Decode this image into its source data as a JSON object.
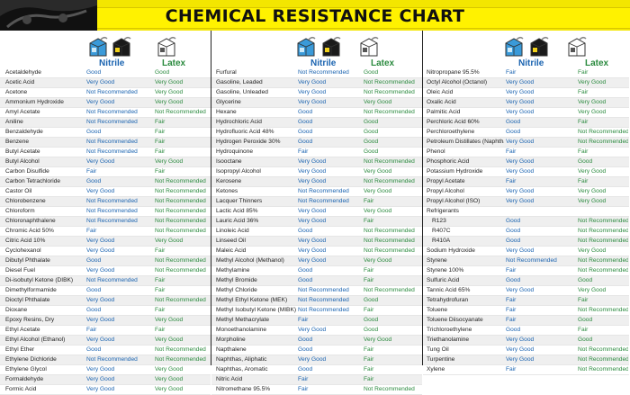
{
  "title": "CHEMICAL RESISTANCE CHART",
  "headers": {
    "nitrile": "Nitrile",
    "latex": "Latex"
  },
  "icons": [
    "glove-box-icon-blue",
    "glove-box-icon-black",
    "glove-box-icon-white"
  ],
  "columns": [
    {
      "rows": [
        [
          "Acetaldehyde",
          "Good",
          "Good"
        ],
        [
          "Acetic Acid",
          "Very Good",
          "Very Good"
        ],
        [
          "Acetone",
          "Not Recommended",
          "Very Good"
        ],
        [
          "Ammonium Hydroxide",
          "Very Good",
          "Very Good"
        ],
        [
          "Amyl Acetate",
          "Not Recommended",
          "Not Recommended"
        ],
        [
          "Aniline",
          "Not Recommended",
          "Fair"
        ],
        [
          "Benzaldehyde",
          "Good",
          "Fair"
        ],
        [
          "Benzene",
          "Not Recommended",
          "Fair"
        ],
        [
          "Butyl Acetate",
          "Not Recommended",
          "Fair"
        ],
        [
          "Butyl Alcohol",
          "Very Good",
          "Very Good"
        ],
        [
          "Carbon Disulfide",
          "Fair",
          "Fair"
        ],
        [
          "Carbon Tetrachloride",
          "Good",
          "Not Recommended"
        ],
        [
          "Castor Oil",
          "Very Good",
          "Not Recommended"
        ],
        [
          "Chlorobenzene",
          "Not Recommended",
          "Not Recommended"
        ],
        [
          "Chloroform",
          "Not Recommended",
          "Not Recommended"
        ],
        [
          "Chloronaphthalene",
          "Not Recommended",
          "Not Recommended"
        ],
        [
          "Chromic Acid 50%",
          "Fair",
          "Not Recommended"
        ],
        [
          "Citric Acid 10%",
          "Very Good",
          "Very Good"
        ],
        [
          "Cyclohexanol",
          "Very Good",
          "Fair"
        ],
        [
          "Dibutyl Phthalate",
          "Good",
          "Not Recommended"
        ],
        [
          "Diesel Fuel",
          "Very Good",
          "Not Recommended"
        ],
        [
          "Di-isobutyl Ketone (DIBK)",
          "Not Recommended",
          "Fair"
        ],
        [
          "Dimethylformamide",
          "Good",
          "Fair"
        ],
        [
          "Dioctyl Phthalate",
          "Very Good",
          "Not Recommended"
        ],
        [
          "Dioxane",
          "Good",
          "Fair"
        ],
        [
          "Epoxy Resins, Dry",
          "Very Good",
          "Very Good"
        ],
        [
          "Ethyl Acetate",
          "Fair",
          "Fair"
        ],
        [
          "Ethyl Alcohol (Ethanol)",
          "Very Good",
          "Very Good"
        ],
        [
          "Ethyl Ether",
          "Good",
          "Not Recommended"
        ],
        [
          "Ethylene Dichloride",
          "Not Recommended",
          "Not Recommended"
        ],
        [
          "Ethylene Glycol",
          "Very Good",
          "Very Good"
        ],
        [
          "Formaldehyde",
          "Very Good",
          "Very Good"
        ],
        [
          "Formic Acid",
          "Very Good",
          "Very Good"
        ]
      ]
    },
    {
      "rows": [
        [
          "Furfural",
          "Not Recommended",
          "Good"
        ],
        [
          "Gasoline, Leaded",
          "Very Good",
          "Not Recommended"
        ],
        [
          "Gasoline, Unleaded",
          "Very Good",
          "Not Recommended"
        ],
        [
          "Glycerine",
          "Very Good",
          "Very Good"
        ],
        [
          "Hexane",
          "Good",
          "Not Recommended"
        ],
        [
          "Hydrochloric Acid",
          "Good",
          "Good"
        ],
        [
          "Hydrofluoric Acid 48%",
          "Good",
          "Good"
        ],
        [
          "Hydrogen Peroxide 30%",
          "Good",
          "Good"
        ],
        [
          "Hydroquinone",
          "Fair",
          "Good"
        ],
        [
          "Isooctane",
          "Very Good",
          "Not Recommended"
        ],
        [
          "Isopropyl Alcohol",
          "Very Good",
          "Very Good"
        ],
        [
          "Kerosene",
          "Very Good",
          "Not Recommended"
        ],
        [
          "Ketones",
          "Not Recommended",
          "Very Good"
        ],
        [
          "Lacquer Thinners",
          "Not Recommended",
          "Fair"
        ],
        [
          "Lactic Acid 85%",
          "Very Good",
          "Very Good"
        ],
        [
          "Lauric Acid 36%",
          "Very Good",
          "Fair"
        ],
        [
          "Linoleic Acid",
          "Good",
          "Not Recommended"
        ],
        [
          "Linseed Oil",
          "Very Good",
          "Not Recommended"
        ],
        [
          "Maleic Acid",
          "Very Good",
          "Not Recommended"
        ],
        [
          "Methyl Alcohol (Methanol)",
          "Very Good",
          "Very Good"
        ],
        [
          "Methylamine",
          "Good",
          "Fair"
        ],
        [
          "Methyl Bromide",
          "Good",
          "Fair"
        ],
        [
          "Methyl Chloride",
          "Not Recommended",
          "Not Recommended"
        ],
        [
          "Methyl Ethyl Ketone (MEK)",
          "Not Recommended",
          "Good"
        ],
        [
          "Methyl Isobutyl Ketone (MIBK)",
          "Not Recommended",
          "Fair"
        ],
        [
          "Methyl Methacrylate",
          "Fair",
          "Good"
        ],
        [
          "Monoethanolamine",
          "Very Good",
          "Good"
        ],
        [
          "Morpholine",
          "Good",
          "Very Good"
        ],
        [
          "Napthalene",
          "Good",
          "Fair"
        ],
        [
          "Naphthas, Aliphatic",
          "Very Good",
          "Fair"
        ],
        [
          "Naphthas, Aromatic",
          "Good",
          "Fair"
        ],
        [
          "Nitric Acid",
          "Fair",
          "Fair"
        ],
        [
          "Nitromethane 95.5%",
          "Fair",
          "Not Recommended"
        ]
      ]
    },
    {
      "rows": [
        [
          "Nitropropane 95.5%",
          "Fair",
          "Fair"
        ],
        [
          "Octyl Alcohol (Octanol)",
          "Very Good",
          "Very Good"
        ],
        [
          "Oleic Acid",
          "Very Good",
          "Fair"
        ],
        [
          "Oxalic Acid",
          "Very Good",
          "Very Good"
        ],
        [
          "Palmitic Acid",
          "Very Good",
          "Very Good"
        ],
        [
          "Perchloric Acid 60%",
          "Good",
          "Fair"
        ],
        [
          "Perchloroethylene",
          "Good",
          "Not Recommended"
        ],
        [
          "Petroleum Distillates (Naphtha)",
          "Very Good",
          "Not Recommended"
        ],
        [
          "Phenol",
          "Fair",
          "Fair"
        ],
        [
          "Phosphoric Acid",
          "Very Good",
          "Good"
        ],
        [
          "Potassium Hydroxide",
          "Very Good",
          "Very Good"
        ],
        [
          "Propyl Acetate",
          "Fair",
          "Fair"
        ],
        [
          "Propyl Alcohol",
          "Very Good",
          "Very Good"
        ],
        [
          "Propyl Alcohol (ISO)",
          "Very Good",
          "Very Good"
        ],
        [
          "Refrigerants",
          "",
          ""
        ],
        [
          "R123",
          "Good",
          "Not Recommended"
        ],
        [
          "R407C",
          "Good",
          "Not Recommended"
        ],
        [
          "R410A",
          "Good",
          "Not Recommended"
        ],
        [
          "Sodium Hydroxide",
          "Very Good",
          "Very Good"
        ],
        [
          "Styrene",
          "Not Recommended",
          "Not Recommended"
        ],
        [
          "Styrene 100%",
          "Fair",
          "Not Recommended"
        ],
        [
          "Sulfuric Acid",
          "Good",
          "Good"
        ],
        [
          "Tannic Acid 65%",
          "Very Good",
          "Very Good"
        ],
        [
          "Tetrahydrofuran",
          "Fair",
          "Fair"
        ],
        [
          "Toluene",
          "Fair",
          "Not Recommended"
        ],
        [
          "Toluene Diisocyanate",
          "Fair",
          "Good"
        ],
        [
          "Trichloroethylene",
          "Good",
          "Fair"
        ],
        [
          "Triethanolamine",
          "Very Good",
          "Good"
        ],
        [
          "Tung Oil",
          "Very Good",
          "Not Recommended"
        ],
        [
          "Turpentine",
          "Very Good",
          "Not Recommended"
        ],
        [
          "Xylene",
          "Fair",
          "Not Recommended"
        ]
      ]
    }
  ]
}
